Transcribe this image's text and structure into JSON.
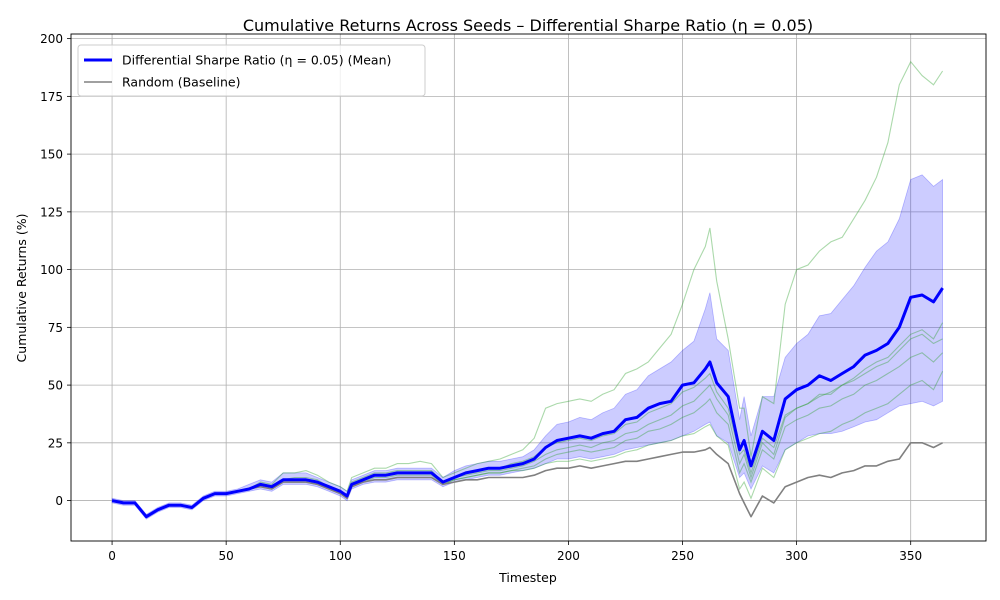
{
  "chart_data": {
    "type": "line",
    "title": "Cumulative Returns Across Seeds – Differential Sharpe Ratio (η = 0.05)",
    "xlabel": "Timestep",
    "ylabel": "Cumulative Returns (%)",
    "xlim": [
      -18,
      383
    ],
    "ylim": [
      -17.5,
      202
    ],
    "xticks": [
      0,
      50,
      100,
      150,
      200,
      250,
      300,
      350
    ],
    "yticks": [
      0,
      25,
      50,
      75,
      100,
      125,
      150,
      175,
      200
    ],
    "grid": true,
    "legend_position": "top-left",
    "legend": [
      {
        "label": "Differential Sharpe Ratio (η = 0.05) (Mean)",
        "color": "#0000ff",
        "style": "thick-line"
      },
      {
        "label": "Random (Baseline)",
        "color": "#808080",
        "style": "line"
      }
    ],
    "colors": {
      "mean": "#0000ff",
      "band": "#0000ff",
      "seeds": "#2ca02c",
      "random": "#808080"
    },
    "x": [
      0,
      5,
      10,
      15,
      20,
      25,
      30,
      35,
      40,
      45,
      50,
      55,
      60,
      65,
      70,
      75,
      80,
      85,
      90,
      95,
      100,
      103,
      105,
      110,
      115,
      120,
      125,
      130,
      135,
      140,
      145,
      150,
      155,
      160,
      165,
      170,
      175,
      180,
      185,
      190,
      195,
      200,
      205,
      210,
      215,
      220,
      225,
      230,
      235,
      240,
      245,
      250,
      255,
      260,
      262,
      265,
      270,
      275,
      277,
      280,
      285,
      290,
      295,
      300,
      305,
      310,
      315,
      320,
      325,
      330,
      335,
      340,
      345,
      350,
      355,
      360,
      364
    ],
    "series": [
      {
        "name": "Differential Sharpe Ratio (η = 0.05) (Mean)",
        "role": "mean",
        "values": [
          0,
          -1,
          -1,
          -7,
          -4,
          -2,
          -2,
          -3,
          1,
          3,
          3,
          4,
          5,
          7,
          6,
          9,
          9,
          9,
          8,
          6,
          4,
          2,
          7,
          9,
          11,
          11,
          12,
          12,
          12,
          12,
          8,
          10,
          12,
          13,
          14,
          14,
          15,
          16,
          18,
          23,
          26,
          27,
          28,
          27,
          29,
          30,
          35,
          36,
          40,
          42,
          43,
          50,
          51,
          57,
          60,
          51,
          45,
          22,
          26,
          15,
          30,
          26,
          44,
          48,
          50,
          54,
          52,
          55,
          58,
          63,
          65,
          68,
          75,
          88,
          89,
          86,
          92
        ]
      },
      {
        "role": "band_upper",
        "values": [
          1,
          0,
          0,
          -6,
          -3,
          -1,
          -1,
          -2,
          2,
          4,
          4,
          5,
          7,
          9,
          8,
          12,
          12,
          12,
          10,
          8,
          6,
          4,
          9,
          11,
          13,
          13,
          14,
          14,
          14,
          14,
          10,
          13,
          15,
          16,
          17,
          17,
          18,
          19,
          22,
          28,
          33,
          34,
          36,
          35,
          38,
          40,
          46,
          48,
          54,
          57,
          60,
          65,
          69,
          83,
          90,
          70,
          65,
          35,
          45,
          28,
          45,
          45,
          62,
          68,
          72,
          80,
          81,
          87,
          93,
          101,
          108,
          112,
          122,
          139,
          141,
          136,
          139
        ]
      },
      {
        "role": "band_lower",
        "values": [
          -1,
          -2,
          -2,
          -8,
          -5,
          -3,
          -3,
          -4,
          0,
          2,
          2,
          3,
          4,
          5,
          4,
          7,
          7,
          7,
          6,
          4,
          2,
          0,
          5,
          7,
          8,
          8,
          9,
          9,
          9,
          9,
          6,
          8,
          9,
          10,
          11,
          11,
          12,
          13,
          14,
          16,
          18,
          18,
          19,
          18,
          19,
          20,
          22,
          23,
          24,
          25,
          26,
          28,
          30,
          33,
          34,
          28,
          25,
          10,
          12,
          5,
          15,
          12,
          22,
          25,
          28,
          29,
          29,
          30,
          32,
          34,
          35,
          38,
          41,
          42,
          43,
          41,
          43
        ]
      },
      {
        "role": "seed",
        "values": [
          0,
          -1,
          -1,
          -7,
          -4,
          -2,
          -2,
          -3,
          1,
          3,
          3,
          4,
          5,
          8,
          7,
          12,
          12,
          13,
          11,
          8,
          6,
          4,
          10,
          12,
          14,
          14,
          16,
          16,
          17,
          16,
          10,
          12,
          14,
          16,
          17,
          18,
          20,
          22,
          27,
          40,
          42,
          43,
          44,
          43,
          46,
          48,
          55,
          57,
          60,
          66,
          72,
          85,
          100,
          110,
          118,
          95,
          70,
          40,
          40,
          19,
          45,
          42,
          85,
          100,
          102,
          108,
          112,
          114,
          122,
          130,
          140,
          155,
          180,
          190,
          184,
          180,
          186
        ]
      },
      {
        "role": "seed",
        "values": [
          0,
          -1,
          -1,
          -7,
          -4,
          -2,
          -2,
          -3,
          1,
          3,
          3,
          4,
          5,
          7,
          6,
          9,
          10,
          10,
          9,
          6,
          4,
          2,
          8,
          10,
          12,
          12,
          13,
          13,
          13,
          13,
          8,
          10,
          12,
          13,
          14,
          14,
          16,
          17,
          19,
          23,
          25,
          26,
          27,
          26,
          28,
          29,
          33,
          34,
          38,
          40,
          42,
          47,
          49,
          53,
          55,
          47,
          40,
          20,
          22,
          12,
          27,
          23,
          37,
          40,
          42,
          46,
          46,
          50,
          52,
          55,
          58,
          60,
          65,
          70,
          72,
          68,
          70
        ]
      },
      {
        "role": "seed",
        "values": [
          0,
          -1,
          -1,
          -7,
          -4,
          -2,
          -2,
          -3,
          1,
          3,
          3,
          4,
          5,
          7,
          6,
          9,
          9,
          9,
          8,
          6,
          4,
          2,
          7,
          9,
          11,
          11,
          12,
          12,
          12,
          12,
          8,
          10,
          11,
          12,
          13,
          13,
          14,
          15,
          17,
          20,
          22,
          23,
          24,
          23,
          25,
          26,
          29,
          30,
          33,
          35,
          37,
          41,
          43,
          48,
          50,
          44,
          37,
          16,
          20,
          10,
          25,
          20,
          36,
          40,
          42,
          45,
          47,
          50,
          53,
          57,
          60,
          62,
          67,
          72,
          74,
          70,
          77
        ]
      },
      {
        "role": "seed",
        "values": [
          0,
          -1,
          -1,
          -7,
          -4,
          -2,
          -2,
          -3,
          1,
          3,
          3,
          4,
          5,
          6,
          5,
          8,
          8,
          8,
          7,
          5,
          3,
          1,
          6,
          8,
          10,
          10,
          11,
          11,
          11,
          11,
          7,
          9,
          10,
          11,
          12,
          12,
          13,
          14,
          15,
          18,
          20,
          21,
          22,
          21,
          22,
          23,
          26,
          27,
          30,
          31,
          33,
          36,
          38,
          42,
          44,
          38,
          33,
          12,
          16,
          8,
          22,
          18,
          32,
          35,
          37,
          40,
          41,
          44,
          46,
          50,
          52,
          55,
          58,
          62,
          64,
          60,
          64
        ]
      },
      {
        "role": "seed",
        "values": [
          0,
          -1,
          -1,
          -7,
          -4,
          -2,
          -2,
          -3,
          1,
          3,
          3,
          4,
          5,
          6,
          5,
          8,
          8,
          8,
          7,
          5,
          3,
          1,
          6,
          8,
          9,
          9,
          10,
          10,
          10,
          10,
          7,
          9,
          10,
          11,
          12,
          12,
          13,
          13,
          14,
          16,
          17,
          17,
          18,
          17,
          18,
          19,
          21,
          22,
          24,
          25,
          26,
          28,
          29,
          32,
          33,
          28,
          24,
          5,
          8,
          1,
          14,
          10,
          22,
          25,
          27,
          29,
          30,
          33,
          35,
          38,
          40,
          42,
          46,
          50,
          52,
          48,
          56
        ]
      },
      {
        "name": "Random (Baseline)",
        "role": "random",
        "values": [
          0,
          -1,
          -1,
          -7,
          -4,
          -2,
          -2,
          -3,
          1,
          3,
          3,
          4,
          5,
          6,
          5,
          8,
          8,
          8,
          7,
          5,
          3,
          1,
          6,
          8,
          9,
          9,
          10,
          10,
          10,
          10,
          7,
          8,
          9,
          9,
          10,
          10,
          10,
          10,
          11,
          13,
          14,
          14,
          15,
          14,
          15,
          16,
          17,
          17,
          18,
          19,
          20,
          21,
          21,
          22,
          23,
          20,
          16,
          3,
          -1,
          -7,
          2,
          -1,
          6,
          8,
          10,
          11,
          10,
          12,
          13,
          15,
          15,
          17,
          18,
          25,
          25,
          23,
          25
        ]
      }
    ]
  }
}
